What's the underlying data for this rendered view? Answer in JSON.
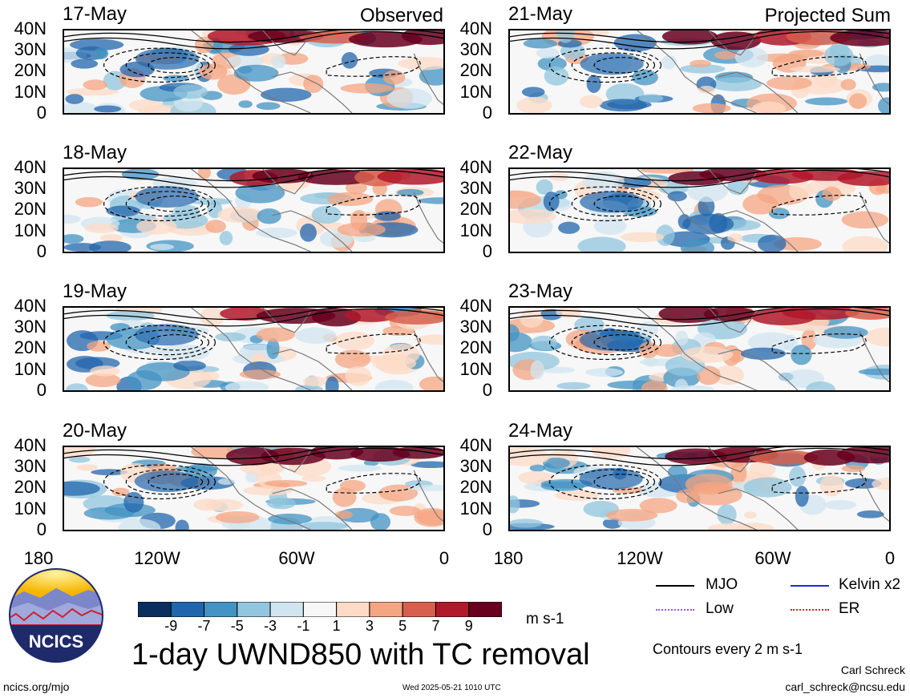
{
  "panels": [
    {
      "date": "17-May",
      "tag": "Observed"
    },
    {
      "date": "18-May",
      "tag": ""
    },
    {
      "date": "19-May",
      "tag": ""
    },
    {
      "date": "20-May",
      "tag": ""
    },
    {
      "date": "21-May",
      "tag": "Projected Sum"
    },
    {
      "date": "22-May",
      "tag": ""
    },
    {
      "date": "23-May",
      "tag": ""
    },
    {
      "date": "24-May",
      "tag": ""
    }
  ],
  "lat_labels": [
    "40N",
    "30N",
    "20N",
    "10N",
    "0"
  ],
  "lon_labels": [
    "180",
    "120W",
    "60W",
    "0"
  ],
  "colorbar": {
    "ticks": [
      "-9",
      "-7",
      "-5",
      "-3",
      "-1",
      "1",
      "3",
      "5",
      "7",
      "9"
    ],
    "colors": [
      "#0a2f5e",
      "#2166ac",
      "#4393c3",
      "#92c5de",
      "#d1e5f0",
      "#f7f7f7",
      "#fddbc7",
      "#f4a582",
      "#d6604d",
      "#b2182b",
      "#67001f"
    ],
    "units": "m s-1"
  },
  "title": "1-day UWND850 with TC removal",
  "legend": {
    "mjo": "MJO",
    "kelvin": "Kelvin x2",
    "low": "Low",
    "er": "ER",
    "contours_note": "Contours every 2 m s-1"
  },
  "logo": {
    "text": "NCICS"
  },
  "footer": {
    "url": "ncics.org/mjo",
    "timestamp": "Wed 2025-05-21 1010 UTC",
    "author": "Carl Schreck",
    "email": "carl_schreck@ncsu.edu"
  }
}
